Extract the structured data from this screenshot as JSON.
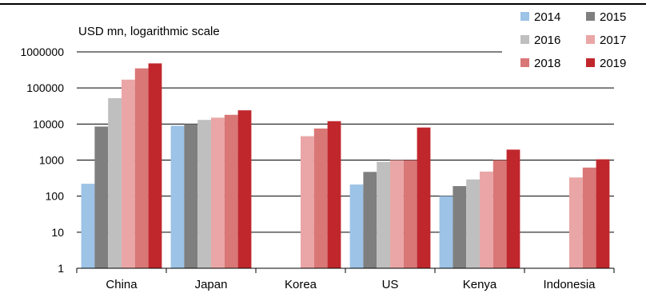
{
  "chart_data": {
    "type": "bar",
    "scale": "log",
    "ylabel": "USD mn, logarithmic scale",
    "ylim": [
      1,
      1000000
    ],
    "y_ticks": [
      "1",
      "10",
      "100",
      "1000",
      "10000",
      "100000",
      "1000000"
    ],
    "grid": true,
    "legend_position": "top-right",
    "categories": [
      "China",
      "Japan",
      "Korea",
      "US",
      "Kenya",
      "Indonesia"
    ],
    "series": [
      {
        "name": "2014",
        "color": "#9dc3e6",
        "values": [
          220,
          9000,
          null,
          210,
          100,
          null
        ]
      },
      {
        "name": "2015",
        "color": "#7f7f7f",
        "values": [
          8500,
          10000,
          null,
          470,
          190,
          null
        ]
      },
      {
        "name": "2016",
        "color": "#bfbfbf",
        "values": [
          52000,
          13000,
          null,
          900,
          290,
          null
        ]
      },
      {
        "name": "2017",
        "color": "#eaa6a6",
        "values": [
          170000,
          15000,
          4600,
          1000,
          480,
          330
        ]
      },
      {
        "name": "2018",
        "color": "#d97777",
        "values": [
          350000,
          18000,
          7500,
          1000,
          1000,
          620
        ]
      },
      {
        "name": "2019",
        "color": "#c0272d",
        "values": [
          480000,
          24000,
          12000,
          8000,
          1950,
          1050
        ]
      }
    ]
  }
}
